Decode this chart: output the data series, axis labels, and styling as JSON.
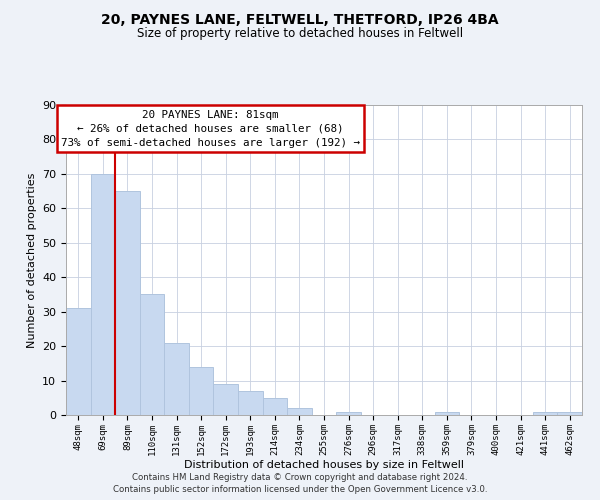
{
  "title": "20, PAYNES LANE, FELTWELL, THETFORD, IP26 4BA",
  "subtitle": "Size of property relative to detached houses in Feltwell",
  "xlabel": "Distribution of detached houses by size in Feltwell",
  "ylabel": "Number of detached properties",
  "bar_labels": [
    "48sqm",
    "69sqm",
    "89sqm",
    "110sqm",
    "131sqm",
    "152sqm",
    "172sqm",
    "193sqm",
    "214sqm",
    "234sqm",
    "255sqm",
    "276sqm",
    "296sqm",
    "317sqm",
    "338sqm",
    "359sqm",
    "379sqm",
    "400sqm",
    "421sqm",
    "441sqm",
    "462sqm"
  ],
  "bar_values": [
    31,
    70,
    65,
    35,
    21,
    14,
    9,
    7,
    5,
    2,
    0,
    1,
    0,
    0,
    0,
    1,
    0,
    0,
    0,
    1,
    1
  ],
  "bar_color": "#c8d9f0",
  "bar_edge_color": "#b0c4de",
  "property_line_color": "#cc0000",
  "property_line_x": 1.5,
  "annotation_line1": "20 PAYNES LANE: 81sqm",
  "annotation_line2": "← 26% of detached houses are smaller (68)",
  "annotation_line3": "73% of semi-detached houses are larger (192) →",
  "ylim": [
    0,
    90
  ],
  "yticks": [
    0,
    10,
    20,
    30,
    40,
    50,
    60,
    70,
    80,
    90
  ],
  "footer1": "Contains HM Land Registry data © Crown copyright and database right 2024.",
  "footer2": "Contains public sector information licensed under the Open Government Licence v3.0.",
  "bg_color": "#eef2f8",
  "plot_bg_color": "#ffffff",
  "grid_color": "#c8d0e0"
}
